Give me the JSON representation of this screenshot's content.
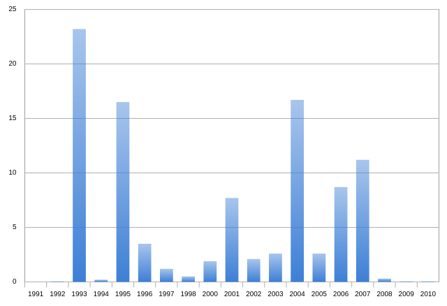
{
  "chart_data": {
    "type": "bar",
    "categories": [
      "1991",
      "1992",
      "1993",
      "1994",
      "1995",
      "1996",
      "1997",
      "1998",
      "2000",
      "2001",
      "2002",
      "2003",
      "2004",
      "2005",
      "2006",
      "2007",
      "2008",
      "2009",
      "2010"
    ],
    "values": [
      0,
      0.05,
      23.2,
      0.2,
      16.5,
      3.5,
      1.2,
      0.5,
      1.9,
      7.7,
      2.1,
      2.6,
      16.7,
      2.6,
      8.7,
      11.2,
      0.3,
      0.05,
      0.05
    ],
    "color": "#3d7fd6",
    "ylim": [
      0,
      25
    ],
    "yticks": [
      0,
      5,
      10,
      15,
      20,
      25
    ],
    "grid": true
  }
}
